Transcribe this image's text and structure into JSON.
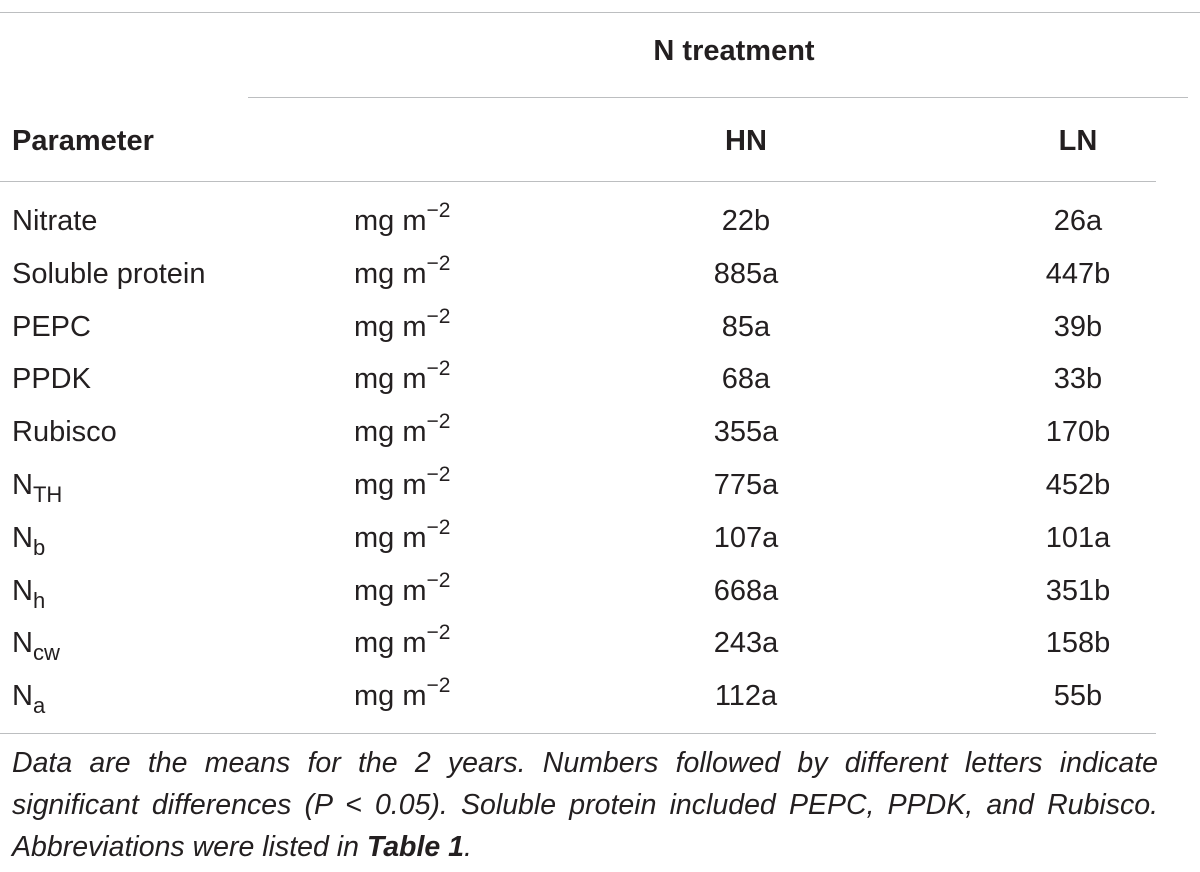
{
  "table": {
    "group_heading": "N treatment",
    "columns": {
      "parameter": "Parameter",
      "hn": "HN",
      "ln": "LN"
    },
    "rows": [
      {
        "param": "Nitrate",
        "param_sub": "",
        "unit_base": "mg m",
        "unit_exp": "−2",
        "hn": "22b",
        "ln": "26a"
      },
      {
        "param": "Soluble protein",
        "param_sub": "",
        "unit_base": "mg m",
        "unit_exp": "−2",
        "hn": "885a",
        "ln": "447b"
      },
      {
        "param": "PEPC",
        "param_sub": "",
        "unit_base": "mg m",
        "unit_exp": "−2",
        "hn": "85a",
        "ln": "39b"
      },
      {
        "param": "PPDK",
        "param_sub": "",
        "unit_base": "mg m",
        "unit_exp": "−2",
        "hn": "68a",
        "ln": "33b"
      },
      {
        "param": "Rubisco",
        "param_sub": "",
        "unit_base": "mg m",
        "unit_exp": "−2",
        "hn": "355a",
        "ln": "170b"
      },
      {
        "param": "N",
        "param_sub": "TH",
        "unit_base": "mg m",
        "unit_exp": "−2",
        "hn": "775a",
        "ln": "452b"
      },
      {
        "param": "N",
        "param_sub": "b",
        "unit_base": "mg m",
        "unit_exp": "−2",
        "hn": "107a",
        "ln": "101a"
      },
      {
        "param": "N",
        "param_sub": "h",
        "unit_base": "mg m",
        "unit_exp": "−2",
        "hn": "668a",
        "ln": "351b"
      },
      {
        "param": "N",
        "param_sub": "cw",
        "unit_base": "mg m",
        "unit_exp": "−2",
        "hn": "243a",
        "ln": "158b"
      },
      {
        "param": "N",
        "param_sub": "a",
        "unit_base": "mg m",
        "unit_exp": "−2",
        "hn": "112a",
        "ln": "55b"
      }
    ]
  },
  "footnote": {
    "text": "Data are the means for the 2 years. Numbers followed by different letters indicate significant differences (P < 0.05). Soluble protein included PEPC, PPDK, and Rubisco. Abbreviations were listed in ",
    "ref": "Table 1",
    "end": "."
  }
}
